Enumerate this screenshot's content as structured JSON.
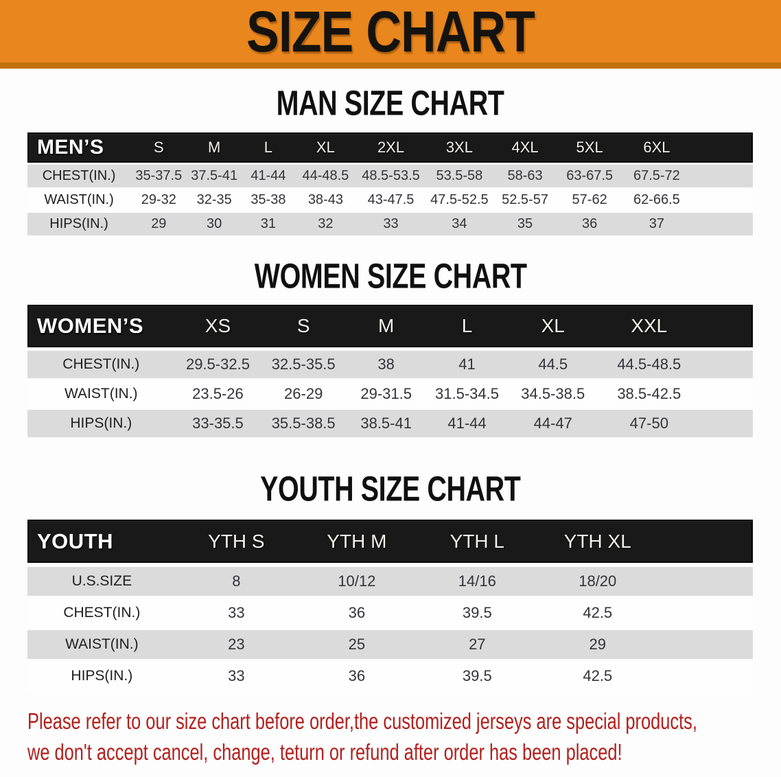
{
  "banner": {
    "title": "SIZE CHART"
  },
  "sections": [
    {
      "id": "men",
      "title": "MAN SIZE CHART",
      "table": {
        "header_label": "MEN’S",
        "columns": [
          "S",
          "M",
          "L",
          "XL",
          "2XL",
          "3XL",
          "4XL",
          "5XL",
          "6XL"
        ],
        "rows": [
          {
            "label": "CHEST(IN.)",
            "values": [
              "35-37.5",
              "37.5-41",
              "41-44",
              "44-48.5",
              "48.5-53.5",
              "53.5-58",
              "58-63",
              "63-67.5",
              "67.5-72"
            ]
          },
          {
            "label": "WAIST(IN.)",
            "values": [
              "29-32",
              "32-35",
              "35-38",
              "38-43",
              "43-47.5",
              "47.5-52.5",
              "52.5-57",
              "57-62",
              "62-66.5"
            ]
          },
          {
            "label": "HIPS(IN.)",
            "values": [
              "29",
              "30",
              "31",
              "32",
              "33",
              "34",
              "35",
              "36",
              "37"
            ]
          }
        ]
      }
    },
    {
      "id": "women",
      "title": "WOMEN SIZE CHART",
      "table": {
        "header_label": "WOMEN’S",
        "columns": [
          "XS",
          "S",
          "M",
          "L",
          "XL",
          "XXL"
        ],
        "rows": [
          {
            "label": "CHEST(IN.)",
            "values": [
              "29.5-32.5",
              "32.5-35.5",
              "38",
              "41",
              "44.5",
              "44.5-48.5"
            ]
          },
          {
            "label": "WAIST(IN.)",
            "values": [
              "23.5-26",
              "26-29",
              "29-31.5",
              "31.5-34.5",
              "34.5-38.5",
              "38.5-42.5"
            ]
          },
          {
            "label": "HIPS(IN.)",
            "values": [
              "33-35.5",
              "35.5-38.5",
              "38.5-41",
              "41-44",
              "44-47",
              "47-50"
            ]
          }
        ]
      }
    },
    {
      "id": "youth",
      "title": "YOUTH SIZE CHART",
      "table": {
        "header_label": "YOUTH",
        "columns": [
          "YTH S",
          "YTH M",
          "YTH L",
          "YTH XL"
        ],
        "rows": [
          {
            "label": "U.S.SIZE",
            "values": [
              "8",
              "10/12",
              "14/16",
              "18/20"
            ]
          },
          {
            "label": "CHEST(IN.)",
            "values": [
              "33",
              "36",
              "39.5",
              "42.5"
            ]
          },
          {
            "label": "WAIST(IN.)",
            "values": [
              "23",
              "25",
              "27",
              "29"
            ]
          },
          {
            "label": "HIPS(IN.)",
            "values": [
              "33",
              "36",
              "39.5",
              "42.5"
            ]
          }
        ]
      }
    }
  ],
  "footer": {
    "lines": [
      "Please refer to our size chart before order,the customized jerseys are special products,",
      "we don't accept cancel, change, teturn or refund after order has been placed!"
    ]
  },
  "colors": {
    "banner_bg": "#E9861D",
    "banner_border": "#C2700F",
    "header_bg": "#191919",
    "row_gray": "#DBDBDB",
    "footer_red": "#B2201D"
  }
}
